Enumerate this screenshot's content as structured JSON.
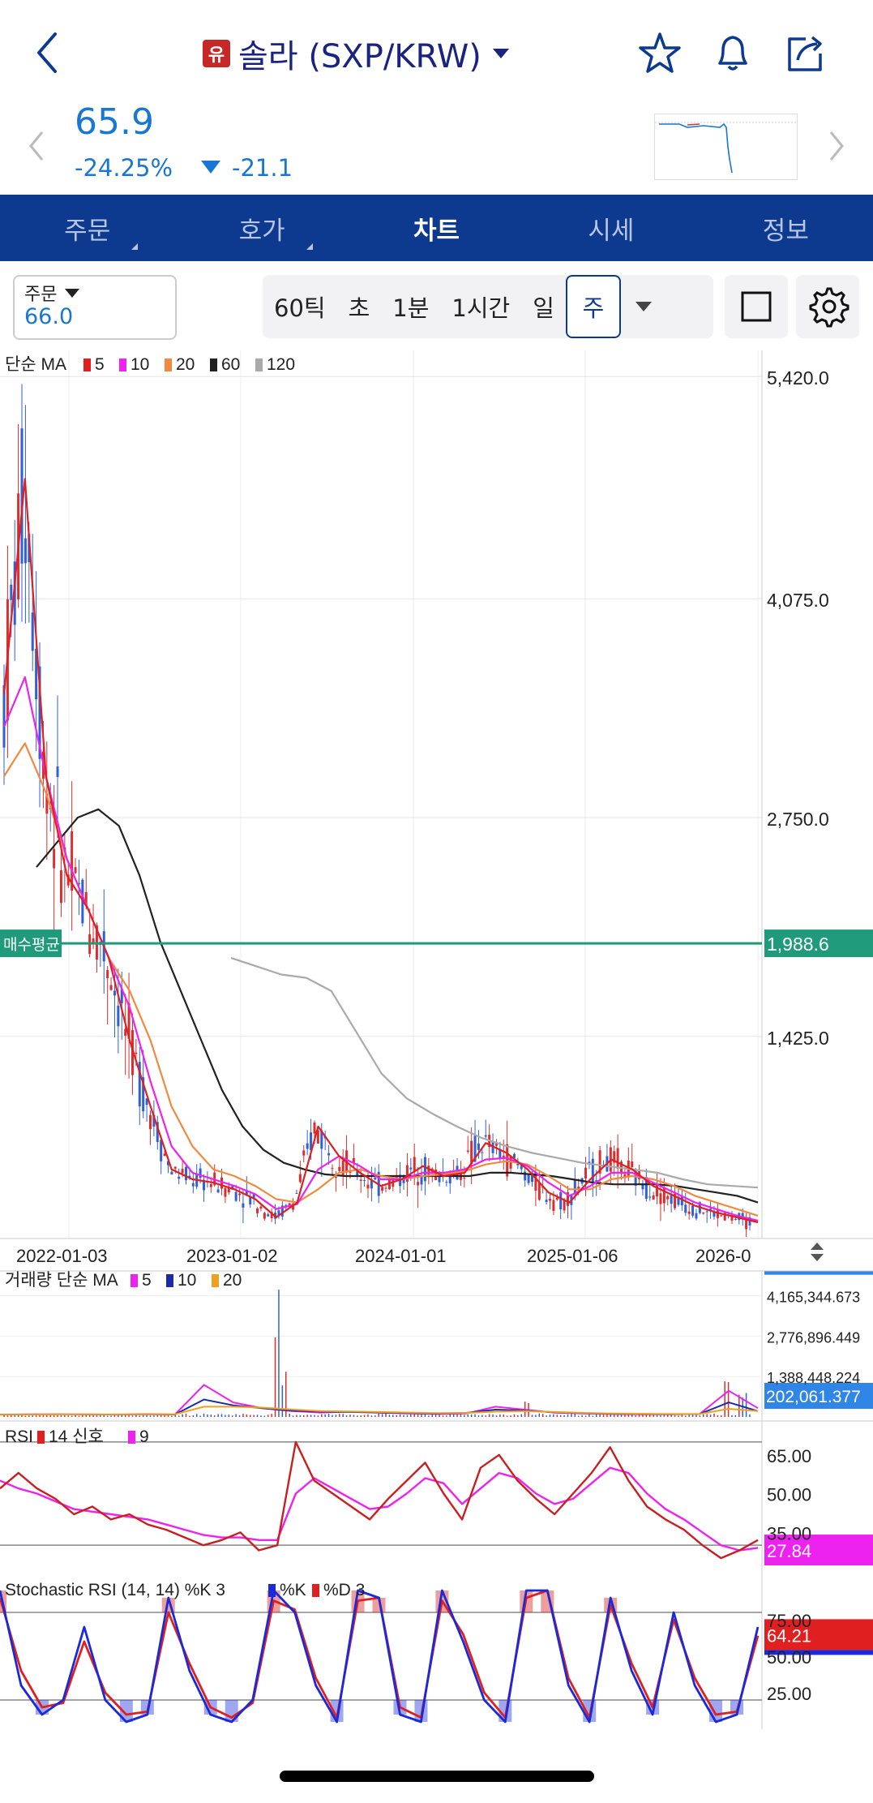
{
  "header": {
    "badge": "유",
    "title": "솔라 (SXP/KRW)",
    "icons": [
      "back-icon",
      "star-icon",
      "bell-icon",
      "share-icon"
    ]
  },
  "quote": {
    "price": "65.9",
    "change_pct": "-24.25%",
    "change_abs": "-21.1"
  },
  "tabs": [
    {
      "label": "주문",
      "has_sub": true
    },
    {
      "label": "호가",
      "has_sub": true
    },
    {
      "label": "차트",
      "active": true
    },
    {
      "label": "시세"
    },
    {
      "label": "정보"
    }
  ],
  "toolbar": {
    "order_label": "주문",
    "order_value": "66.0",
    "periods": [
      "60틱",
      "초",
      "1분",
      "1시간",
      "일",
      "주"
    ],
    "selected_period": "주"
  },
  "colors": {
    "navy": "#0d3a8e",
    "blue": "#1976d2",
    "ma5": "#e02020",
    "ma10": "#ee22ee",
    "ma20": "#f08a40",
    "ma60": "#222222",
    "ma120": "#aaaaaa",
    "avg_line": "#1f9a7a",
    "rise": "#d83030",
    "fall": "#3060d8"
  },
  "chart_data": [
    {
      "type": "candlestick",
      "legend": {
        "title": "단순 MA",
        "items": [
          {
            "name": "5",
            "color": "#e02020"
          },
          {
            "name": "10",
            "color": "#ee22ee"
          },
          {
            "name": "20",
            "color": "#f08a40"
          },
          {
            "name": "60",
            "color": "#222222"
          },
          {
            "name": "120",
            "color": "#aaaaaa"
          }
        ]
      },
      "y_ticks": [
        "5,420.0",
        "4,075.0",
        "2,750.0",
        "1,425.0"
      ],
      "y_tick_values": [
        5420,
        4075,
        2750,
        1425
      ],
      "ylim": [
        300,
        5480
      ],
      "x_ticks": [
        "2022-01-03",
        "2023-01-02",
        "2024-01-01",
        "2025-01-06",
        "2026-0"
      ],
      "avg_line": {
        "label": "매수평균",
        "value_label": "1,988.6",
        "value": 1988.6
      },
      "last_price_label": "65.90",
      "last_price": 65.9,
      "ma5": [
        3500,
        4800,
        3000,
        2400,
        2200,
        1900,
        1400,
        1000,
        620,
        560,
        540,
        500,
        440,
        330,
        420,
        880,
        700,
        600,
        520,
        560,
        640,
        580,
        600,
        780,
        720,
        620,
        480,
        420,
        560,
        680,
        620,
        520,
        460,
        400,
        360,
        330,
        300
      ],
      "ma10": [
        3300,
        3600,
        3000,
        2500,
        2200,
        1900,
        1600,
        1150,
        760,
        600,
        560,
        520,
        470,
        380,
        410,
        620,
        700,
        640,
        560,
        560,
        600,
        600,
        620,
        680,
        690,
        640,
        540,
        460,
        520,
        600,
        600,
        540,
        480,
        420,
        380,
        340,
        310
      ],
      "ma20": [
        3000,
        3200,
        2900,
        2500,
        2200,
        1900,
        1700,
        1400,
        1000,
        760,
        620,
        580,
        520,
        440,
        420,
        500,
        600,
        620,
        580,
        560,
        580,
        590,
        610,
        650,
        670,
        650,
        580,
        500,
        500,
        560,
        580,
        560,
        520,
        460,
        420,
        380,
        340
      ],
      "ma60": [
        2450,
        2600,
        2750,
        2800,
        2700,
        2400,
        2000,
        1700,
        1400,
        1100,
        880,
        740,
        660,
        620,
        590,
        580,
        580,
        580,
        580,
        580,
        580,
        580,
        600,
        600,
        590,
        580,
        560,
        540,
        530,
        530,
        530,
        520,
        500,
        480,
        460,
        420
      ],
      "ma120": [
        1900,
        1850,
        1800,
        1780,
        1700,
        1450,
        1200,
        1050,
        960,
        880,
        810,
        760,
        720,
        690,
        660,
        640,
        620,
        600,
        560,
        530,
        520,
        510
      ]
    },
    {
      "type": "bar",
      "legend": {
        "title": "거래량 단순 MA",
        "items": [
          {
            "name": "5",
            "color": "#ee22ee"
          },
          {
            "name": "10",
            "color": "#1a2aa8"
          },
          {
            "name": "20",
            "color": "#f0a020"
          }
        ]
      },
      "y_ticks": [
        "4,165,344.673",
        "2,776,896.449",
        "1,388,448.224"
      ],
      "y_tick_values": [
        4165344.673,
        2776896.449,
        1388448.224
      ],
      "ylim": [
        0,
        4600000
      ],
      "last_label": "202,061.377",
      "last_value": 202061.377,
      "spikes": [
        {
          "x": 0.365,
          "value": 4500000
        },
        {
          "x": 0.375,
          "value": 1800000
        },
        {
          "x": 0.7,
          "value": 600000
        },
        {
          "x": 0.97,
          "value": 1500000
        },
        {
          "x": 0.99,
          "value": 900000
        }
      ]
    },
    {
      "type": "line",
      "legend": {
        "title": "RSI",
        "items": [
          {
            "name": "14 신호",
            "color": "#e02020"
          },
          {
            "name": "9",
            "color": "#ee22ee"
          }
        ]
      },
      "y_ticks": [
        "65.00",
        "50.00",
        "35.00"
      ],
      "y_tick_values": [
        65,
        50,
        35
      ],
      "ylim": [
        20,
        75
      ],
      "last_label": "27.84",
      "last_value": 27.84,
      "rsi": [
        52,
        58,
        52,
        48,
        42,
        45,
        40,
        42,
        38,
        36,
        33,
        30,
        32,
        35,
        28,
        30,
        70,
        55,
        50,
        45,
        40,
        48,
        55,
        62,
        50,
        40,
        60,
        65,
        55,
        48,
        42,
        50,
        58,
        68,
        55,
        45,
        40,
        36,
        30,
        25,
        28,
        32
      ],
      "signal": [
        55,
        52,
        50,
        47,
        44,
        43,
        42,
        41,
        40,
        38,
        36,
        34,
        33,
        33,
        32,
        32,
        50,
        56,
        52,
        48,
        44,
        45,
        50,
        56,
        54,
        46,
        52,
        58,
        56,
        50,
        46,
        48,
        54,
        60,
        58,
        50,
        44,
        40,
        35,
        30,
        28,
        29
      ]
    },
    {
      "type": "line",
      "legend": {
        "title": "Stochastic RSI (14, 14) %K 3",
        "items": [
          {
            "name": "%K",
            "color": "#1a2ad8"
          },
          {
            "name": "%D 3",
            "color": "#e02020"
          }
        ]
      },
      "y_ticks": [
        "75.00",
        "50.00",
        "25.00"
      ],
      "y_tick_values": [
        75,
        50,
        25
      ],
      "ylim": [
        0,
        100
      ],
      "last_label": "64.21",
      "last_value": 64.21,
      "k": [
        95,
        30,
        10,
        20,
        70,
        20,
        5,
        10,
        90,
        40,
        10,
        5,
        20,
        95,
        80,
        30,
        5,
        95,
        90,
        10,
        5,
        95,
        60,
        20,
        5,
        95,
        95,
        30,
        5,
        90,
        40,
        10,
        80,
        30,
        5,
        10,
        70
      ],
      "d": [
        90,
        40,
        15,
        18,
        60,
        25,
        10,
        12,
        80,
        45,
        15,
        8,
        18,
        88,
        82,
        35,
        8,
        88,
        90,
        15,
        8,
        88,
        65,
        25,
        8,
        90,
        95,
        35,
        8,
        85,
        45,
        15,
        75,
        35,
        10,
        12,
        64
      ]
    }
  ]
}
